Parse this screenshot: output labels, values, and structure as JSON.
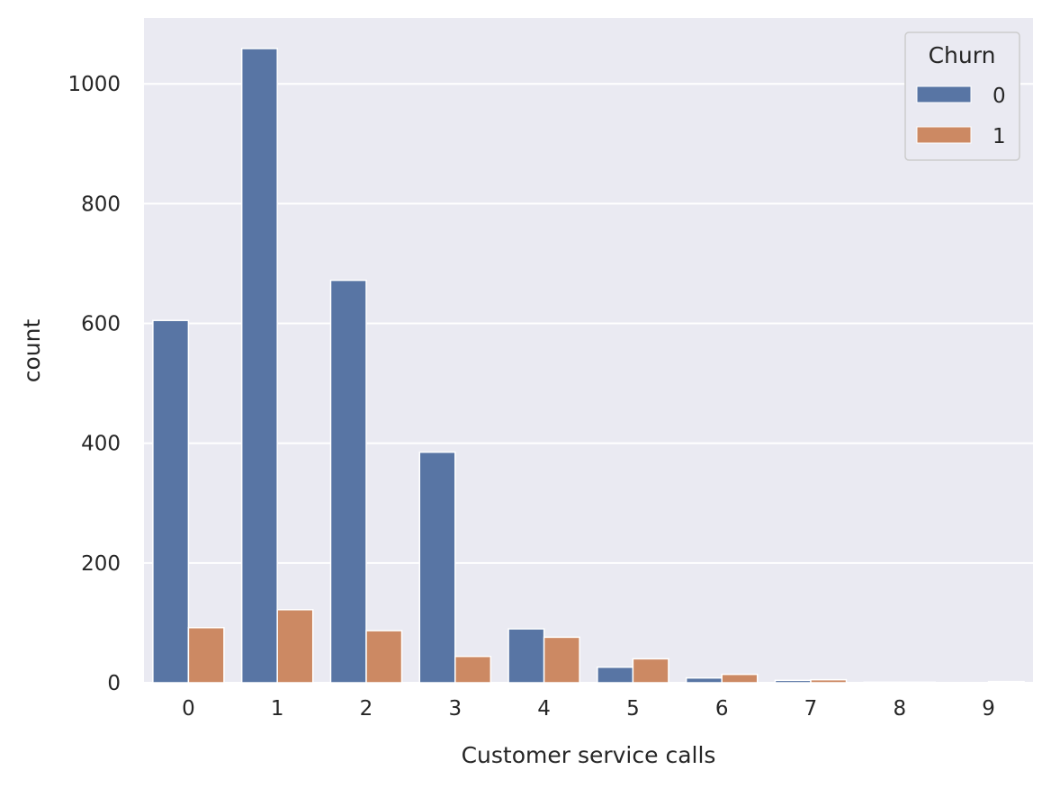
{
  "chart_data": {
    "type": "bar",
    "title": "",
    "xlabel": "Customer service calls",
    "ylabel": "count",
    "categories": [
      "0",
      "1",
      "2",
      "3",
      "4",
      "5",
      "6",
      "7",
      "8",
      "9"
    ],
    "series": [
      {
        "name": "0",
        "color": "#5875a4",
        "values": [
          605,
          1059,
          672,
          385,
          90,
          26,
          8,
          4,
          1,
          0
        ]
      },
      {
        "name": "1",
        "color": "#cc8963",
        "values": [
          92,
          122,
          87,
          44,
          76,
          40,
          14,
          5,
          1,
          2
        ]
      }
    ],
    "ylim": [
      0,
      1110
    ],
    "yticks": [
      0,
      200,
      400,
      600,
      800,
      1000
    ],
    "grid": true,
    "background": "#eaeaf2",
    "legend": {
      "title": "Churn",
      "placement": "top-right"
    }
  }
}
